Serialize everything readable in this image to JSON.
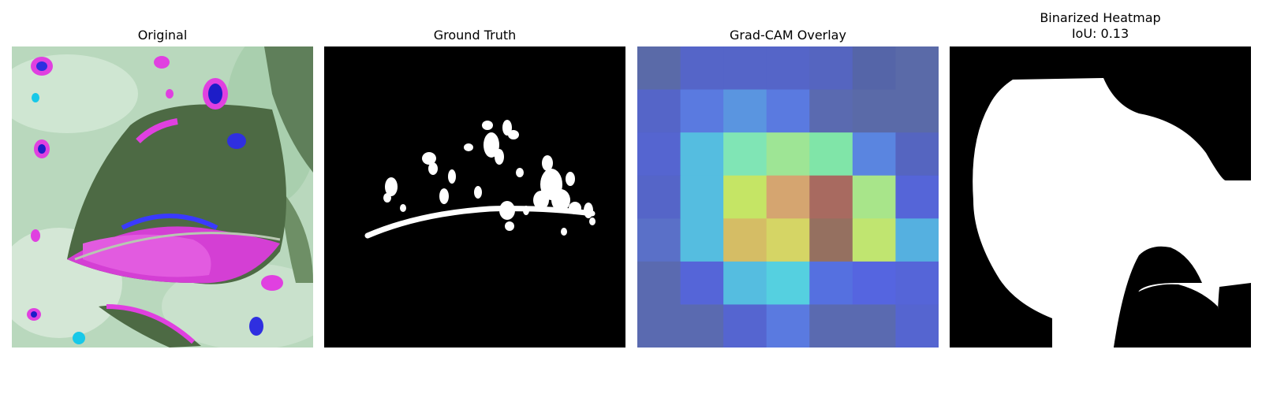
{
  "panels": [
    {
      "title": "Original"
    },
    {
      "title": "Ground Truth"
    },
    {
      "title": "Grad-CAM Overlay"
    },
    {
      "title": "Binarized Heatmap",
      "subtitle": "IoU: 0.13"
    }
  ],
  "heatmap_grid": [
    [
      "#5a6aa8",
      "#5565c8",
      "#5565c8",
      "#5565c8",
      "#5565c0",
      "#5565a8",
      "#5a6aa8"
    ],
    [
      "#5565c8",
      "#5a7ae0",
      "#5a95e0",
      "#5a7ae0",
      "#5a6ab0",
      "#5a6aa8",
      "#5a6aa8"
    ],
    [
      "#5565d0",
      "#55bde0",
      "#80e5b5",
      "#9ee595",
      "#80e5a8",
      "#5a85e0",
      "#5565c0"
    ],
    [
      "#5565c8",
      "#55bde0",
      "#c5e565",
      "#d5a570",
      "#a86a60",
      "#a8e58a",
      "#5565d8"
    ],
    [
      "#5a70c8",
      "#55bde0",
      "#d5bd65",
      "#d5d565",
      "#957060",
      "#c0e570",
      "#55b0e0"
    ],
    [
      "#5a6ab0",
      "#5565d8",
      "#55bde0",
      "#55d0e0",
      "#5570e0",
      "#5565e0",
      "#5565d8"
    ],
    [
      "#5a6ab0",
      "#5a6ab0",
      "#5565d0",
      "#5a7ae0",
      "#5a6ab0",
      "#5a6ab0",
      "#5565d0"
    ]
  ]
}
